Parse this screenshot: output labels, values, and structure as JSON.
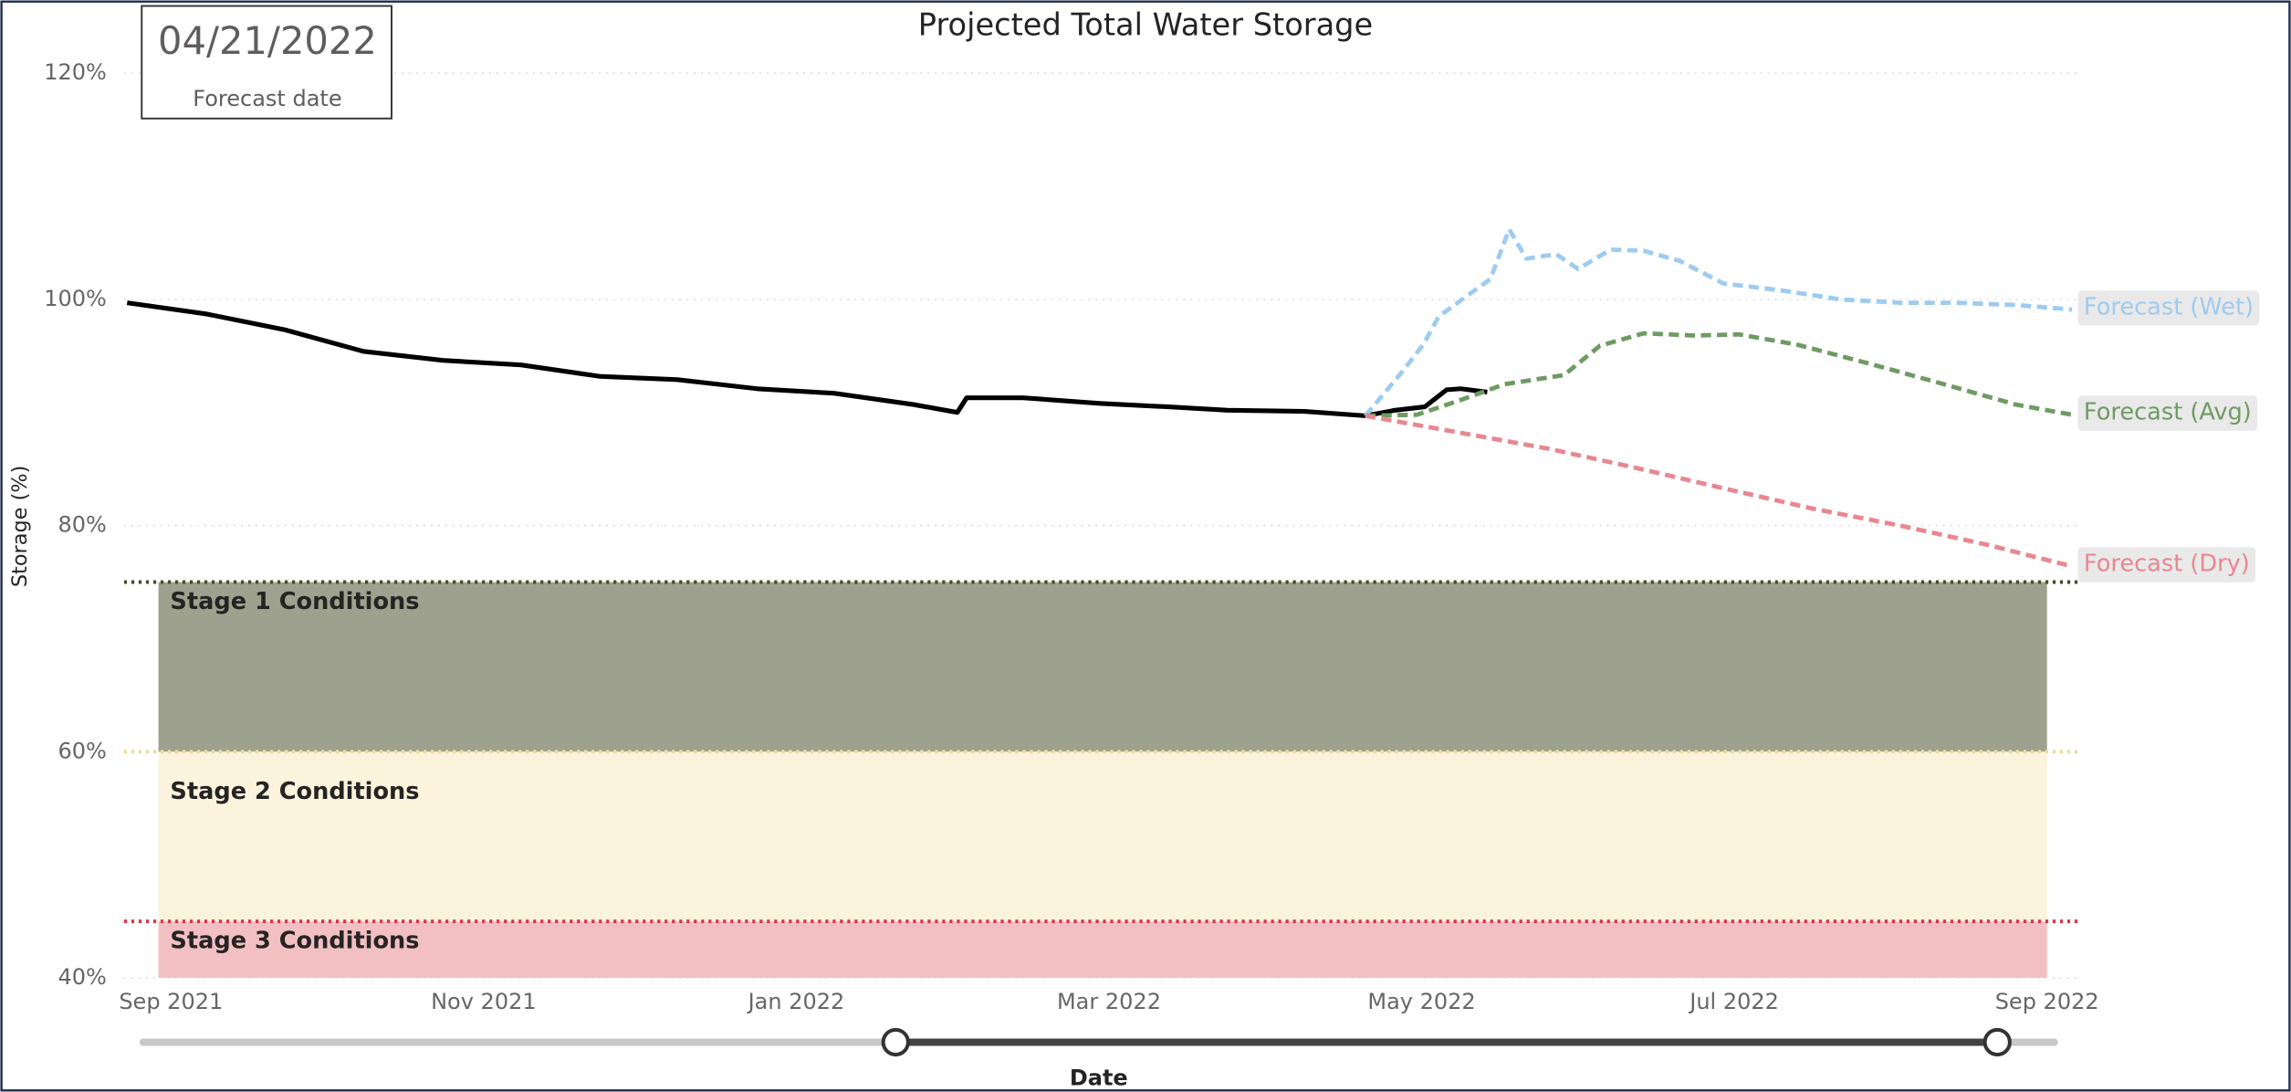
{
  "date_card": {
    "value": "04/21/2022",
    "label": "Forecast date"
  },
  "chart_data": {
    "type": "line",
    "title": "Projected Total Water Storage",
    "x_label": "Date",
    "y_label": "Storage (%)",
    "xlim": [
      -0.3,
      12.2
    ],
    "xticks": [
      {
        "value": 0,
        "label": "Sep 2021"
      },
      {
        "value": 2,
        "label": "Nov 2021"
      },
      {
        "value": 4,
        "label": "Jan 2022"
      },
      {
        "value": 6,
        "label": "Mar 2022"
      },
      {
        "value": 8,
        "label": "May 2022"
      },
      {
        "value": 10,
        "label": "Jul 2022"
      },
      {
        "value": 12,
        "label": "Sep 2022"
      }
    ],
    "ylim": [
      40,
      120
    ],
    "yticks": [
      {
        "value": 40,
        "label": "40%"
      },
      {
        "value": 60,
        "label": "60%"
      },
      {
        "value": 80,
        "label": "80%"
      },
      {
        "value": 100,
        "label": "100%"
      },
      {
        "value": 120,
        "label": "120%"
      }
    ],
    "grid": true,
    "bands": [
      {
        "label": "Stage 1 Conditions",
        "from": 60,
        "to": 75,
        "x": [
          -0.08,
          12.0
        ],
        "color": "#9da18d",
        "line_color": "#4a4a2a"
      },
      {
        "label": "Stage 2 Conditions",
        "from": 45,
        "to": 60,
        "x": [
          -0.08,
          12.0
        ],
        "color": "#fbf3dc",
        "line_color": "#eedc9a"
      },
      {
        "label": "Stage 3 Conditions",
        "from": 40,
        "to": 45,
        "x": [
          -0.08,
          12.0
        ],
        "color": "#f2c0c3",
        "line_color": "#d9364a"
      }
    ],
    "series": [
      {
        "color": "#000000",
        "dash": false,
        "x": [
          -0.28,
          0.23,
          0.73,
          1.23,
          1.74,
          2.24,
          2.74,
          3.24,
          3.75,
          4.24,
          4.75,
          5.03,
          5.09,
          5.45,
          5.94,
          6.38,
          6.76,
          7.25,
          7.64,
          7.83,
          8.02,
          8.16,
          8.25,
          8.42
        ],
        "values": [
          99.7,
          98.7,
          97.3,
          95.4,
          94.6,
          94.2,
          93.2,
          92.9,
          92.1,
          91.7,
          90.7,
          90.0,
          91.3,
          91.3,
          90.8,
          90.5,
          90.2,
          90.1,
          89.7,
          90.2,
          90.5,
          92.0,
          92.1,
          91.8
        ]
      },
      {
        "name": "Forecast (Wet)",
        "color": "#9ecbf0",
        "dash": true,
        "x": [
          7.64,
          7.87,
          8.01,
          8.11,
          8.25,
          8.44,
          8.56,
          8.67,
          8.86,
          9.0,
          9.21,
          9.42,
          9.65,
          9.93,
          10.3,
          10.68,
          11.06,
          11.43,
          11.8,
          12.16
        ],
        "values": [
          89.7,
          93.5,
          96.0,
          98.5,
          99.9,
          101.8,
          106.2,
          103.6,
          104.0,
          102.7,
          104.4,
          104.3,
          103.4,
          101.4,
          100.8,
          100.0,
          99.7,
          99.7,
          99.5,
          99.1
        ]
      },
      {
        "name": "Forecast (Avg)",
        "color": "#6e9b64",
        "dash": true,
        "x": [
          7.64,
          7.97,
          8.25,
          8.53,
          8.91,
          9.14,
          9.42,
          9.75,
          10.03,
          10.4,
          10.87,
          11.34,
          11.8,
          12.16
        ],
        "values": [
          89.7,
          89.8,
          91.1,
          92.5,
          93.3,
          95.9,
          97.0,
          96.8,
          96.9,
          96.0,
          94.3,
          92.5,
          90.7,
          89.8
        ]
      },
      {
        "name": "Forecast (Dry)",
        "color": "#e8878f",
        "dash": true,
        "x": [
          7.64,
          8.25,
          8.81,
          9.37,
          9.93,
          10.5,
          11.06,
          11.62,
          12.16
        ],
        "values": [
          89.7,
          88.2,
          86.8,
          85.1,
          83.3,
          81.5,
          80.0,
          78.3,
          76.4
        ]
      }
    ]
  }
}
